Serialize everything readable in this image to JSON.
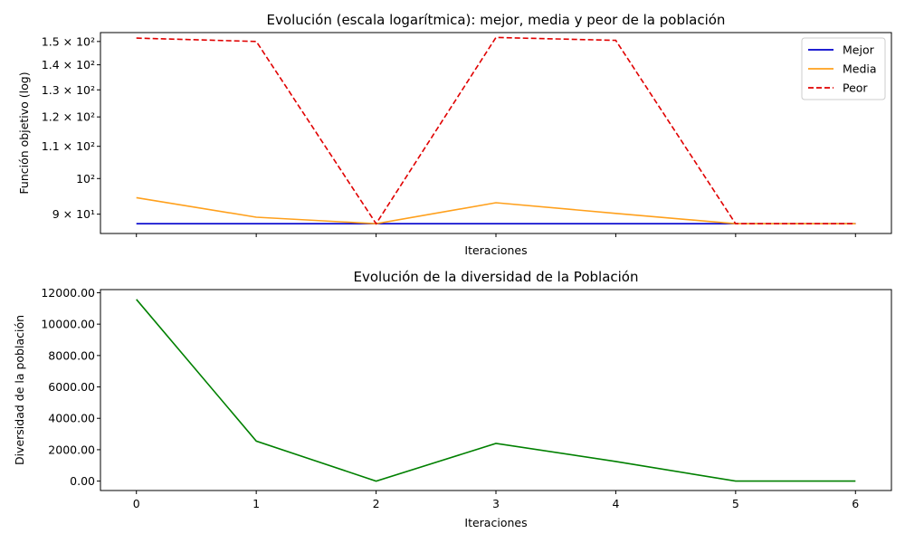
{
  "chart_data": [
    {
      "type": "line",
      "title": "Evolución (escala logarítmica): mejor, media y peor de la población",
      "xlabel": "Iteraciones",
      "ylabel": "Función objetivo (log)",
      "yscale": "log",
      "ylim": [
        85,
        154
      ],
      "xlim": [
        -0.3,
        6.3
      ],
      "grid": false,
      "legend_position": "top-right",
      "x": [
        0,
        1,
        2,
        3,
        4,
        5,
        6
      ],
      "yticks": [
        {
          "value": 90,
          "label": "9 × 10¹"
        },
        {
          "value": 100,
          "label": "10²"
        },
        {
          "value": 110,
          "label": "1.1 × 10²"
        },
        {
          "value": 120,
          "label": "1.2 × 10²"
        },
        {
          "value": 130,
          "label": "1.3 × 10²"
        },
        {
          "value": 140,
          "label": "1.4 × 10²"
        },
        {
          "value": 150,
          "label": "1.5 × 10²"
        }
      ],
      "series": [
        {
          "name": "Mejor",
          "color": "#0000cc",
          "dash": "solid",
          "values": [
            87.5,
            87.5,
            87.5,
            87.5,
            87.5,
            87.5,
            87.5
          ]
        },
        {
          "name": "Media",
          "color": "#ffa01c",
          "dash": "solid",
          "values": [
            94.5,
            89.2,
            87.5,
            93.1,
            90.2,
            87.5,
            87.5
          ]
        },
        {
          "name": "Peor",
          "color": "#e00000",
          "dash": "dashed",
          "values": [
            151.5,
            150.0,
            87.5,
            151.8,
            150.5,
            87.5,
            87.5
          ]
        }
      ]
    },
    {
      "type": "line",
      "title": "Evolución de la diversidad de la Población",
      "xlabel": "Iteraciones",
      "ylabel": "Diversidad de la población",
      "ylim": [
        -600,
        12200
      ],
      "xlim": [
        -0.3,
        6.3
      ],
      "grid": false,
      "x": [
        0,
        1,
        2,
        3,
        4,
        5,
        6
      ],
      "xtick_labels": [
        "0",
        "1",
        "2",
        "3",
        "4",
        "5",
        "6"
      ],
      "yticks": [
        {
          "value": 0,
          "label": "0.00"
        },
        {
          "value": 2000,
          "label": "2000.00"
        },
        {
          "value": 4000,
          "label": "4000.00"
        },
        {
          "value": 6000,
          "label": "6000.00"
        },
        {
          "value": 8000,
          "label": "8000.00"
        },
        {
          "value": 10000,
          "label": "10000.00"
        },
        {
          "value": 12000,
          "label": "12000.00"
        }
      ],
      "series": [
        {
          "color": "#008000",
          "dash": "solid",
          "values": [
            11580,
            2550,
            0,
            2400,
            1250,
            0,
            0
          ]
        }
      ]
    }
  ]
}
